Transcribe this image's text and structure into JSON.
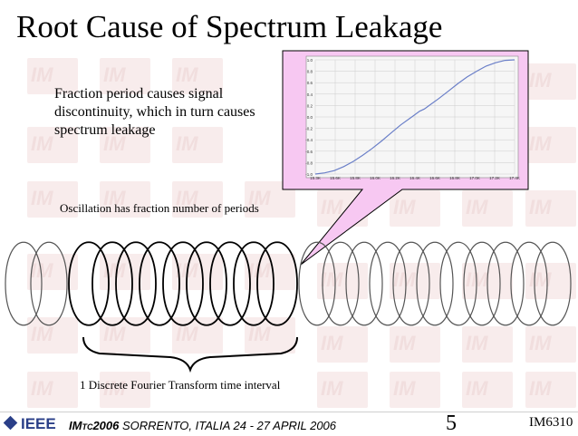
{
  "slide": {
    "title": "Root Cause of Spectrum Leakage",
    "note": "Fraction period causes signal discontinuity, which in turn causes spectrum leakage",
    "oscillation_label": "Oscillation has fraction number of periods",
    "dft_label": "1 Discrete Fourier Transform time interval",
    "footer": {
      "ieee_logo": "IEEE",
      "conference_prefix": "IM",
      "conference_sub": "TC",
      "conference_year": "2006",
      "conference_rest": " SORRENTO, ITALIA 24 - 27 APRIL 2006",
      "page_number": "5",
      "code": "IM6310"
    }
  },
  "colors": {
    "callout_fill": "#f7c8f2",
    "curve": "#6a7fc8",
    "plot_bg": "#f6f6f6",
    "footer_blue": "#2a3f88"
  },
  "chart_data": {
    "type": "line",
    "x_ticks": [
      "15.3K",
      "15.6K",
      "15.8K",
      "16.0K",
      "16.2K",
      "16.4K",
      "16.6K",
      "16.8K",
      "17.0K",
      "17.2K",
      "17.4K"
    ],
    "y_ticks": [
      "1.0",
      "0.8",
      "0.6",
      "0.4",
      "0.2",
      "0.0",
      "-0.2",
      "-0.4",
      "-0.6",
      "-0.8",
      "-1.0"
    ],
    "ylim": [
      -1,
      1
    ],
    "grid": true,
    "series": [
      {
        "x": [
          15.3,
          15.4,
          15.5,
          15.6,
          15.7,
          15.8,
          15.9,
          16.0,
          16.1,
          16.2,
          16.3,
          16.4,
          16.45,
          16.5,
          16.6,
          16.7,
          16.8,
          16.9,
          17.0,
          17.1,
          17.2,
          17.3,
          17.4
        ],
        "y": [
          -1.0,
          -0.98,
          -0.94,
          -0.87,
          -0.78,
          -0.67,
          -0.55,
          -0.42,
          -0.28,
          -0.14,
          -0.02,
          0.1,
          0.14,
          0.2,
          0.32,
          0.45,
          0.58,
          0.7,
          0.8,
          0.89,
          0.95,
          0.99,
          1.0
        ]
      }
    ]
  }
}
